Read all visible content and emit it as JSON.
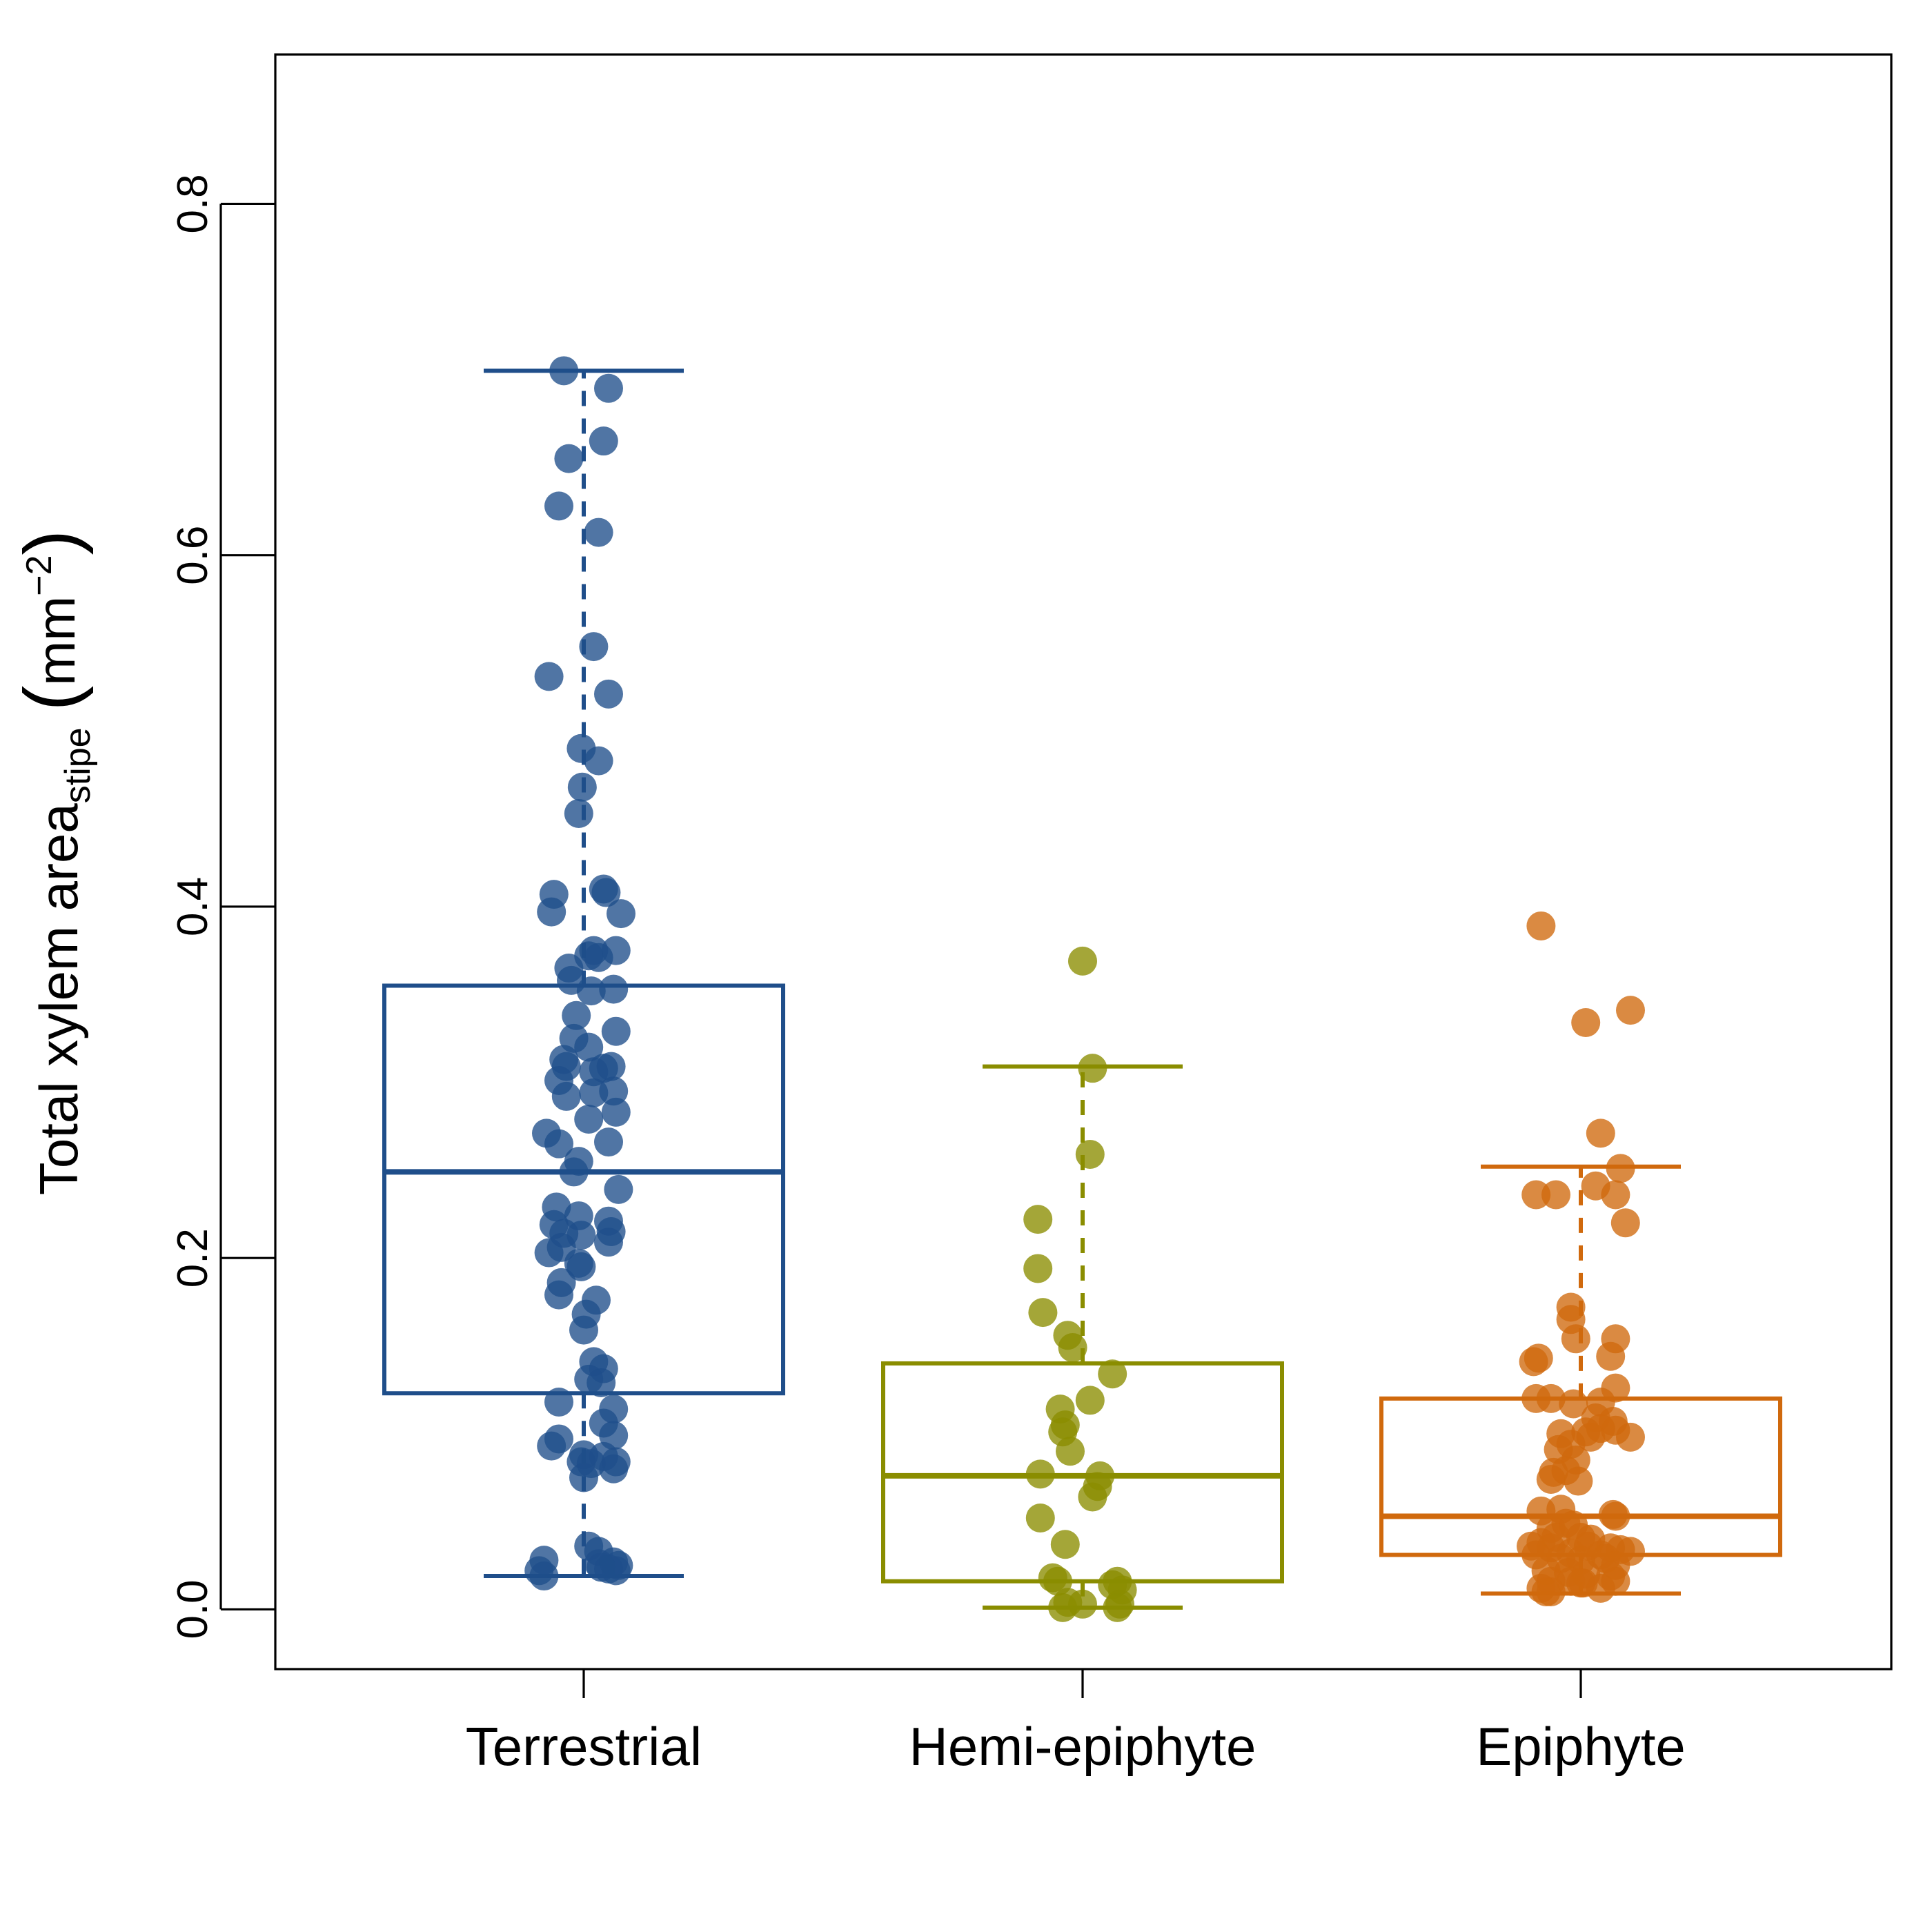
{
  "chart_data": {
    "type": "box",
    "ylabel": {
      "main": "Total xylem area",
      "sub": "stipe",
      "unit_prefix": "mm",
      "unit_exp": "−2"
    },
    "ylim": [
      -0.034,
      0.885
    ],
    "yticks": [
      0.0,
      0.2,
      0.4,
      0.6,
      0.8
    ],
    "ytick_labels": [
      "0.0",
      "0.2",
      "0.4",
      "0.6",
      "0.8"
    ],
    "categories": [
      "Terrestrial",
      "Hemi-epiphyte",
      "Epiphyte"
    ],
    "groups": [
      {
        "name": "Terrestrial",
        "color": "#1f4e8a",
        "stats": {
          "lower_whisker": 0.019,
          "q1": 0.123,
          "median": 0.249,
          "q3": 0.355,
          "upper_whisker": 0.705
        },
        "points": [
          [
            -0.04,
            0.705
          ],
          [
            0.05,
            0.695
          ],
          [
            -0.03,
            0.655
          ],
          [
            0.04,
            0.665
          ],
          [
            -0.05,
            0.628
          ],
          [
            0.03,
            0.613
          ],
          [
            0.02,
            0.548
          ],
          [
            -0.07,
            0.531
          ],
          [
            0.05,
            0.521
          ],
          [
            -0.005,
            0.49
          ],
          [
            0.03,
            0.483
          ],
          [
            -0.003,
            0.468
          ],
          [
            -0.01,
            0.453
          ],
          [
            0.04,
            0.41
          ],
          [
            -0.06,
            0.407
          ],
          [
            0.045,
            0.408
          ],
          [
            -0.065,
            0.397
          ],
          [
            0.075,
            0.396
          ],
          [
            0.02,
            0.375
          ],
          [
            0.03,
            0.371
          ],
          [
            0.065,
            0.375
          ],
          [
            -0.03,
            0.365
          ],
          [
            0.01,
            0.372
          ],
          [
            -0.025,
            0.358
          ],
          [
            0.015,
            0.352
          ],
          [
            0.06,
            0.353
          ],
          [
            -0.015,
            0.338
          ],
          [
            0.065,
            0.329
          ],
          [
            -0.02,
            0.325
          ],
          [
            0.01,
            0.32
          ],
          [
            -0.04,
            0.313
          ],
          [
            -0.035,
            0.309
          ],
          [
            -0.05,
            0.301
          ],
          [
            0.02,
            0.306
          ],
          [
            0.04,
            0.308
          ],
          [
            0.055,
            0.309
          ],
          [
            0.02,
            0.294
          ],
          [
            0.06,
            0.295
          ],
          [
            -0.035,
            0.292
          ],
          [
            0.065,
            0.283
          ],
          [
            0.01,
            0.279
          ],
          [
            -0.075,
            0.271
          ],
          [
            -0.05,
            0.265
          ],
          [
            0.05,
            0.266
          ],
          [
            -0.01,
            0.255
          ],
          [
            -0.02,
            0.249
          ],
          [
            0.07,
            0.239
          ],
          [
            -0.055,
            0.229
          ],
          [
            -0.01,
            0.224
          ],
          [
            -0.06,
            0.219
          ],
          [
            0.05,
            0.221
          ],
          [
            -0.04,
            0.214
          ],
          [
            -0.005,
            0.213
          ],
          [
            0.055,
            0.215
          ],
          [
            0.05,
            0.209
          ],
          [
            -0.07,
            0.203
          ],
          [
            -0.045,
            0.206
          ],
          [
            -0.01,
            0.197
          ],
          [
            -0.005,
            0.195
          ],
          [
            -0.045,
            0.186
          ],
          [
            -0.05,
            0.179
          ],
          [
            0.025,
            0.176
          ],
          [
            0.005,
            0.168
          ],
          [
            0.0,
            0.159
          ],
          [
            0.02,
            0.141
          ],
          [
            0.04,
            0.137
          ],
          [
            0.035,
            0.129
          ],
          [
            0.01,
            0.131
          ],
          [
            -0.05,
            0.118
          ],
          [
            0.06,
            0.114
          ],
          [
            0.04,
            0.106
          ],
          [
            0.06,
            0.099
          ],
          [
            -0.05,
            0.097
          ],
          [
            -0.065,
            0.093
          ],
          [
            0.0,
            0.088
          ],
          [
            0.04,
            0.087
          ],
          [
            -0.005,
            0.084
          ],
          [
            0.015,
            0.083
          ],
          [
            0.065,
            0.084
          ],
          [
            0.06,
            0.08
          ],
          [
            0.0,
            0.075
          ],
          [
            0.01,
            0.036
          ],
          [
            0.03,
            0.033
          ],
          [
            -0.08,
            0.028
          ],
          [
            0.06,
            0.027
          ],
          [
            0.07,
            0.025
          ],
          [
            0.03,
            0.026
          ],
          [
            -0.09,
            0.022
          ],
          [
            0.05,
            0.023
          ],
          [
            0.065,
            0.022
          ],
          [
            0.035,
            0.024
          ],
          [
            -0.08,
            0.019
          ]
        ]
      },
      {
        "name": "Hemi-epiphyte",
        "color": "#8a8d00",
        "stats": {
          "lower_whisker": 0.001,
          "q1": 0.016,
          "median": 0.076,
          "q3": 0.14,
          "upper_whisker": 0.309
        },
        "points": [
          [
            0.0,
            0.369
          ],
          [
            0.02,
            0.308
          ],
          [
            0.015,
            0.259
          ],
          [
            -0.09,
            0.222
          ],
          [
            -0.09,
            0.194
          ],
          [
            -0.08,
            0.169
          ],
          [
            -0.03,
            0.156
          ],
          [
            -0.02,
            0.149
          ],
          [
            0.06,
            0.134
          ],
          [
            0.015,
            0.119
          ],
          [
            -0.045,
            0.114
          ],
          [
            -0.035,
            0.105
          ],
          [
            -0.04,
            0.101
          ],
          [
            -0.025,
            0.09
          ],
          [
            -0.085,
            0.077
          ],
          [
            0.035,
            0.076
          ],
          [
            0.03,
            0.07
          ],
          [
            0.02,
            0.064
          ],
          [
            -0.085,
            0.052
          ],
          [
            -0.035,
            0.037
          ],
          [
            -0.06,
            0.018
          ],
          [
            -0.05,
            0.016
          ],
          [
            0.07,
            0.016
          ],
          [
            0.06,
            0.014
          ],
          [
            0.08,
            0.011
          ],
          [
            -0.03,
            0.004
          ],
          [
            0.0,
            0.003
          ],
          [
            0.075,
            0.003
          ],
          [
            -0.04,
            0.001
          ],
          [
            0.07,
            0.001
          ]
        ]
      },
      {
        "name": "Epiphyte",
        "color": "#d0690d",
        "stats": {
          "lower_whisker": 0.009,
          "q1": 0.031,
          "median": 0.053,
          "q3": 0.12,
          "upper_whisker": 0.252
        },
        "points": [
          [
            -0.08,
            0.389
          ],
          [
            0.1,
            0.341
          ],
          [
            0.01,
            0.334
          ],
          [
            0.04,
            0.271
          ],
          [
            0.08,
            0.251
          ],
          [
            0.03,
            0.241
          ],
          [
            -0.09,
            0.236
          ],
          [
            -0.05,
            0.236
          ],
          [
            0.07,
            0.236
          ],
          [
            0.09,
            0.22
          ],
          [
            -0.02,
            0.172
          ],
          [
            -0.02,
            0.165
          ],
          [
            -0.01,
            0.154
          ],
          [
            0.07,
            0.154
          ],
          [
            -0.085,
            0.143
          ],
          [
            -0.095,
            0.141
          ],
          [
            0.06,
            0.144
          ],
          [
            0.07,
            0.126
          ],
          [
            -0.09,
            0.12
          ],
          [
            -0.06,
            0.12
          ],
          [
            -0.015,
            0.117
          ],
          [
            0.04,
            0.118
          ],
          [
            0.03,
            0.109
          ],
          [
            0.065,
            0.107
          ],
          [
            0.04,
            0.103
          ],
          [
            0.01,
            0.101
          ],
          [
            0.07,
            0.102
          ],
          [
            -0.04,
            0.1
          ],
          [
            0.1,
            0.098
          ],
          [
            0.02,
            0.098
          ],
          [
            -0.02,
            0.094
          ],
          [
            -0.045,
            0.091
          ],
          [
            -0.01,
            0.085
          ],
          [
            -0.03,
            0.079
          ],
          [
            -0.055,
            0.078
          ],
          [
            -0.06,
            0.074
          ],
          [
            -0.005,
            0.073
          ],
          [
            -0.08,
            0.056
          ],
          [
            -0.04,
            0.057
          ],
          [
            0.065,
            0.054
          ],
          [
            0.07,
            0.053
          ],
          [
            -0.03,
            0.049
          ],
          [
            -0.015,
            0.048
          ],
          [
            -0.06,
            0.046
          ],
          [
            -0.05,
            0.041
          ],
          [
            0.0,
            0.041
          ],
          [
            0.02,
            0.04
          ],
          [
            -0.08,
            0.038
          ],
          [
            -0.1,
            0.036
          ],
          [
            0.015,
            0.036
          ],
          [
            -0.06,
            0.035
          ],
          [
            0.06,
            0.035
          ],
          [
            0.08,
            0.034
          ],
          [
            0.1,
            0.033
          ],
          [
            -0.02,
            0.032
          ],
          [
            -0.09,
            0.031
          ],
          [
            0.04,
            0.031
          ],
          [
            -0.04,
            0.029
          ],
          [
            0.0,
            0.028
          ],
          [
            0.05,
            0.029
          ],
          [
            0.07,
            0.025
          ],
          [
            -0.07,
            0.022
          ],
          [
            -0.025,
            0.021
          ],
          [
            0.01,
            0.02
          ],
          [
            0.06,
            0.019
          ],
          [
            -0.06,
            0.016
          ],
          [
            0.07,
            0.016
          ],
          [
            -0.02,
            0.016
          ],
          [
            0.005,
            0.015
          ],
          [
            -0.08,
            0.012
          ],
          [
            -0.06,
            0.01
          ],
          [
            0.04,
            0.012
          ],
          [
            -0.07,
            0.01
          ],
          [
            0.0,
            0.015
          ]
        ]
      }
    ]
  }
}
